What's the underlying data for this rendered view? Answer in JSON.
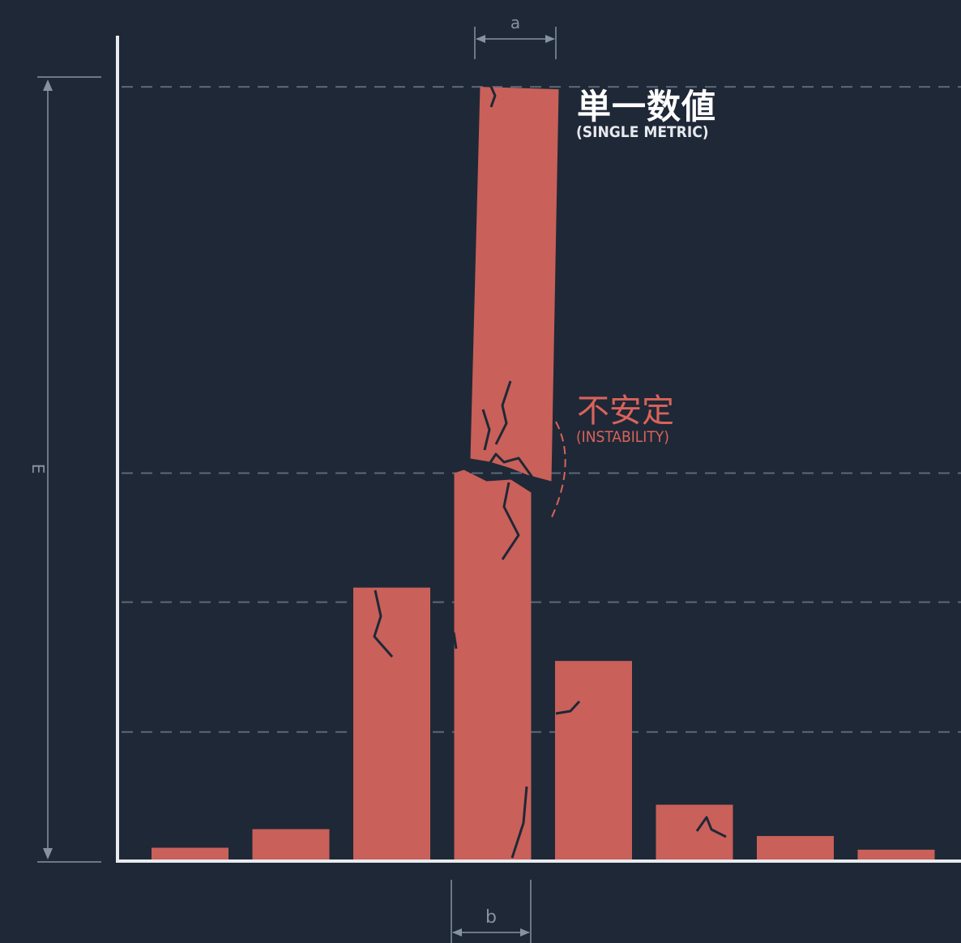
{
  "chart_data": {
    "type": "bar",
    "values": [
      1.2,
      3.1,
      27.8,
      79.0,
      20.3,
      5.6,
      2.4,
      1.0
    ],
    "ylim": [
      0,
      80
    ],
    "grid": "dashed horizontal",
    "bar_color": "#c9605a",
    "crack_color": "#1f2836",
    "annotations": {
      "peak_title": "単一数値",
      "peak_subtitle": "(SINGLE METRIC)",
      "instability_title": "不安定",
      "instability_subtitle": "(INSTABILITY)"
    },
    "dimension_labels": {
      "top_width": "a",
      "bottom_width": "b",
      "height": "E"
    }
  },
  "colors": {
    "background": "#1f2836",
    "axis": "#e8ebef",
    "grid": "#5d6877",
    "dimension": "#8592a1",
    "accent_text": "#d9635b",
    "main_text": "#ffffff"
  }
}
